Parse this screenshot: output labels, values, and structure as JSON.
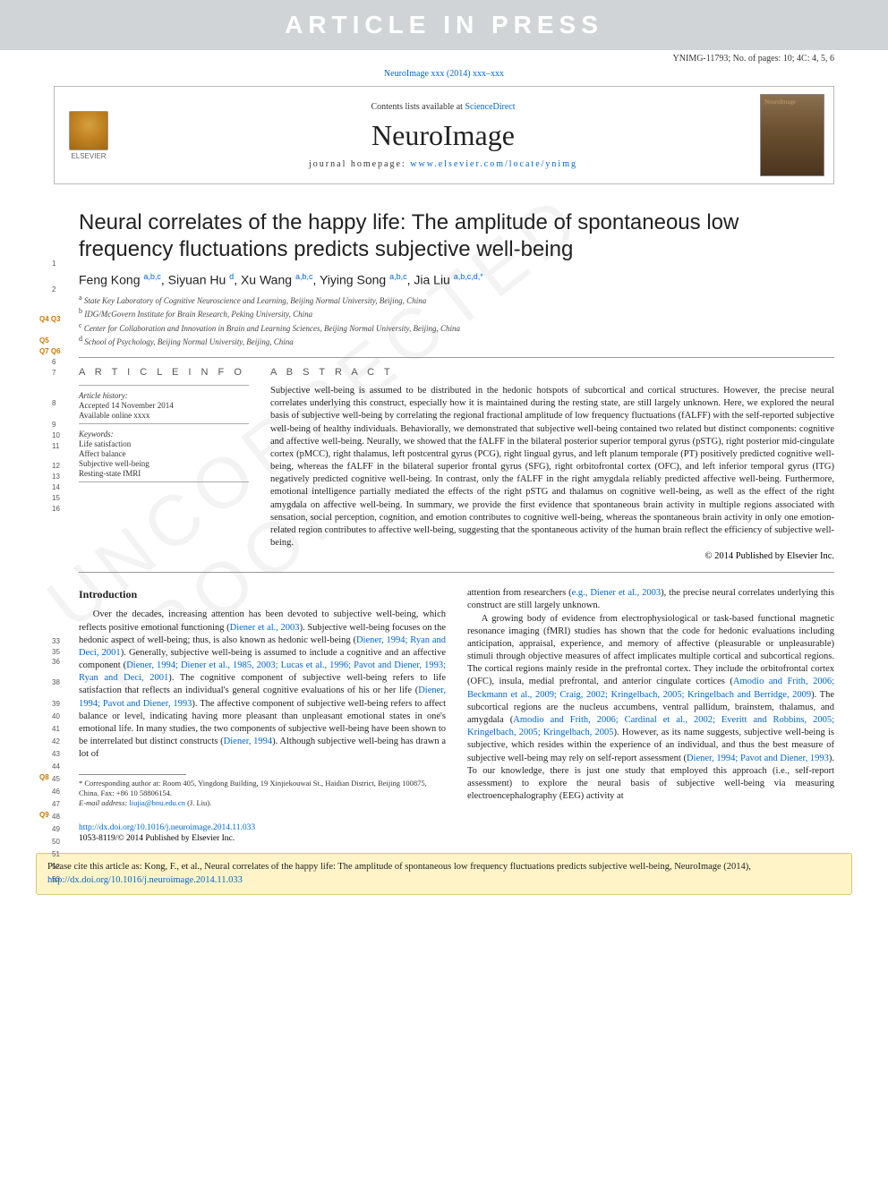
{
  "banner": "ARTICLE IN PRESS",
  "header_meta": "YNIMG-11793; No. of pages: 10; 4C: 4, 5, 6",
  "journal_ref": "NeuroImage xxx (2014) xxx–xxx",
  "contents_text": "Contents lists available at ",
  "contents_link": "ScienceDirect",
  "journal_name": "NeuroImage",
  "homepage_label": "journal homepage: ",
  "homepage_url": "www.elsevier.com/locate/ynimg",
  "elsevier": "ELSEVIER",
  "title": "Neural correlates of the happy life: The amplitude of spontaneous low frequency fluctuations predicts subjective well-being",
  "authors_html": "Feng Kong <sup>a,b,c</sup>, Siyuan Hu <sup>d</sup>, Xu Wang <sup>a,b,c</sup>, Yiying Song <sup>a,b,c</sup>, Jia Liu <sup>a,b,c,d,*</sup>",
  "affiliations": [
    {
      "sup": "a",
      "text": "State Key Laboratory of Cognitive Neuroscience and Learning, Beijing Normal University, Beijing, China"
    },
    {
      "sup": "b",
      "text": "IDG/McGovern Institute for Brain Research, Peking University, China"
    },
    {
      "sup": "c",
      "text": "Center for Collaboration and Innovation in Brain and Learning Sciences, Beijing Normal University, Beijing, China"
    },
    {
      "sup": "d",
      "text": "School of Psychology, Beijing Normal University, Beijing, China"
    }
  ],
  "article_info": {
    "heading": "A R T I C L E   I N F O",
    "history_label": "Article history:",
    "accepted": "Accepted 14 November 2014",
    "available": "Available online xxxx",
    "keywords_label": "Keywords:",
    "keywords": [
      "Life satisfaction",
      "Affect balance",
      "Subjective well-being",
      "Resting-state fMRI"
    ]
  },
  "abstract": {
    "heading": "A B S T R A C T",
    "text": "Subjective well-being is assumed to be distributed in the hedonic hotspots of subcortical and cortical structures. However, the precise neural correlates underlying this construct, especially how it is maintained during the resting state, are still largely unknown. Here, we explored the neural basis of subjective well-being by correlating the regional fractional amplitude of low frequency fluctuations (fALFF) with the self-reported subjective well-being of healthy individuals. Behaviorally, we demonstrated that subjective well-being contained two related but distinct components: cognitive and affective well-being. Neurally, we showed that the fALFF in the bilateral posterior superior temporal gyrus (pSTG), right posterior mid-cingulate cortex (pMCC), right thalamus, left postcentral gyrus (PCG), right lingual gyrus, and left planum temporale (PT) positively predicted cognitive well-being, whereas the fALFF in the bilateral superior frontal gyrus (SFG), right orbitofrontal cortex (OFC), and left inferior temporal gyrus (ITG) negatively predicted cognitive well-being. In contrast, only the fALFF in the right amygdala reliably predicted affective well-being. Furthermore, emotional intelligence partially mediated the effects of the right pSTG and thalamus on cognitive well-being, as well as the effect of the right amygdala on affective well-being. In summary, we provide the first evidence that spontaneous brain activity in multiple regions associated with sensation, social perception, cognition, and emotion contributes to cognitive well-being, whereas the spontaneous brain activity in only one emotion-related region contributes to affective well-being, suggesting that the spontaneous activity of the human brain reflect the efficiency of subjective well-being.",
    "copyright": "© 2014 Published by Elsevier Inc."
  },
  "intro_heading": "Introduction",
  "intro_col1": "Over the decades, increasing attention has been devoted to subjective well-being, which reflects positive emotional functioning (Diener et al., 2003). Subjective well-being focuses on the hedonic aspect of well-being; thus, is also known as hedonic well-being (Diener, 1994; Ryan and Deci, 2001). Generally, subjective well-being is assumed to include a cognitive and an affective component (Diener, 1994; Diener et al., 1985, 2003; Lucas et al., 1996; Pavot and Diener, 1993; Ryan and Deci, 2001). The cognitive component of subjective well-being refers to life satisfaction that reflects an individual's general cognitive evaluations of his or her life (Diener, 1994; Pavot and Diener, 1993). The affective component of subjective well-being refers to affect balance or level, indicating having more pleasant than unpleasant emotional states in one's emotional life. In many studies, the two components of subjective well-being have been shown to be interrelated but distinct constructs (Diener, 1994). Although subjective well-being has drawn a lot of",
  "intro_col2_lead": "attention from researchers (e.g., Diener et al., 2003), the precise neural correlates underlying this construct are still largely unknown.",
  "intro_col2_p2": "A growing body of evidence from electrophysiological or task-based functional magnetic resonance imaging (fMRI) studies has shown that the code for hedonic evaluations including anticipation, appraisal, experience, and memory of affective (pleasurable or unpleasurable) stimuli through objective measures of affect implicates multiple cortical and subcortical regions. The cortical regions mainly reside in the prefrontal cortex. They include the orbitofrontal cortex (OFC), insula, medial prefrontal, and anterior cingulate cortices (Amodio and Frith, 2006; Beckmann et al., 2009; Craig, 2002; Kringelbach, 2005; Kringelbach and Berridge, 2009). The subcortical regions are the nucleus accumbens, ventral pallidum, brainstem, thalamus, and amygdala (Amodio and Frith, 2006; Cardinal et al., 2002; Everitt and Robbins, 2005; Kringelbach, 2005; Kringelbach, 2005). However, as its name suggests, subjective well-being is subjective, which resides within the experience of an individual, and thus the best measure of subjective well-being may rely on self-report assessment (Diener, 1994; Pavot and Diener, 1993). To our knowledge, there is just one study that employed this approach (i.e., self-report assessment) to explore the neural basis of subjective well-being via measuring electroencephalography (EEG) activity at",
  "footnote": {
    "corr": "* Corresponding author at: Room 405, Yingdong Building, 19 Xinjiekouwai St., Haidian District, Beijing 100875, China. Fax: +86 10 58806154.",
    "email_label": "E-mail address: ",
    "email": "liujia@bnu.edu.cn",
    "email_suffix": " (J. Liu)."
  },
  "doi": {
    "url": "http://dx.doi.org/10.1016/j.neuroimage.2014.11.033",
    "issn": "1053-8119/© 2014 Published by Elsevier Inc."
  },
  "cite_box": {
    "text": "Please cite this article as: Kong, F., et al., Neural correlates of the happy life: The amplitude of spontaneous low frequency fluctuations predicts subjective well-being, NeuroImage (2014), ",
    "link": "http://dx.doi.org/10.1016/j.neuroimage.2014.11.033"
  },
  "line_numbers_left": {
    "title1": "1",
    "title2": "2",
    "authors": "Q4 Q3",
    "aff_a": "Q5",
    "aff_b": "Q7 Q6",
    "aff_c": "6",
    "aff_d": "7",
    "info_h": "8",
    "hist": "9",
    "acc": "10",
    "avail": "11",
    "kw": "12",
    "kw1": "13",
    "kw2": "14",
    "kw3": "15",
    "kw4": "16",
    "abs_cr1": "33",
    "abs_cr2": "35",
    "abs_cr3": "36",
    "intro_h": "38",
    "c1_start": 39,
    "c1_end": 53,
    "q8": "Q8",
    "q9": "Q9"
  },
  "colors": {
    "banner_bg": "#d0d4d6",
    "link": "#0066cc",
    "query": "#cc7700",
    "cite_bg": "#fff4c8",
    "cite_border": "#d8c870"
  }
}
